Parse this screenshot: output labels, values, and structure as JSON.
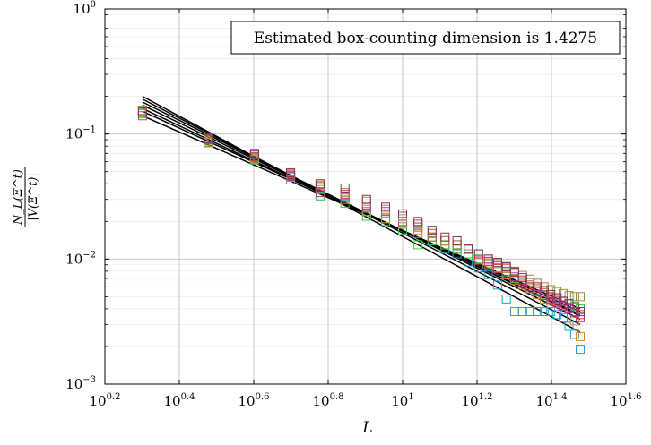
{
  "chart_data": {
    "type": "scatter",
    "title": "",
    "xlabel": "L",
    "ylabel": "N_L(Ξ^t) / |V(Ξ^t)|",
    "ylabel_numerator": "N_L(Ξ^t)",
    "ylabel_denominator": "|V(Ξ^t)|",
    "x_scale": "log",
    "y_scale": "log",
    "xlim": [
      1.5849,
      39.811
    ],
    "ylim": [
      0.001,
      1
    ],
    "x_ticks": [
      {
        "base": "10",
        "exp": "0.2",
        "value": 1.5849
      },
      {
        "base": "10",
        "exp": "0.4",
        "value": 2.5119
      },
      {
        "base": "10",
        "exp": "0.6",
        "value": 3.9811
      },
      {
        "base": "10",
        "exp": "0.8",
        "value": 6.3096
      },
      {
        "base": "10",
        "exp": "1",
        "value": 10
      },
      {
        "base": "10",
        "exp": "1.2",
        "value": 15.849
      },
      {
        "base": "10",
        "exp": "1.4",
        "value": 25.119
      },
      {
        "base": "10",
        "exp": "1.6",
        "value": 39.811
      }
    ],
    "y_ticks": [
      {
        "base": "10",
        "exp": "−3",
        "value": 0.001
      },
      {
        "base": "10",
        "exp": "−2",
        "value": 0.01
      },
      {
        "base": "10",
        "exp": "−1",
        "value": 0.1
      },
      {
        "base": "10",
        "exp": "0",
        "value": 1
      }
    ],
    "grid": true,
    "annotation": "Estimated box-counting dimension is 1.4275",
    "annotation_position": "top-right",
    "x": [
      2,
      3,
      4,
      5,
      6,
      7,
      8,
      9,
      10,
      11,
      12,
      13,
      14,
      15,
      16,
      17,
      18,
      19,
      20,
      21,
      22,
      23,
      24,
      25,
      26,
      27,
      28,
      29,
      30
    ],
    "series": [
      {
        "color": "#1f9fd6",
        "values": [
          0.15,
          0.09,
          0.065,
          0.046,
          0.037,
          0.032,
          0.024,
          0.021,
          0.019,
          0.016,
          0.014,
          0.012,
          0.011,
          0.0095,
          0.0085,
          0.0075,
          0.0062,
          0.0048,
          0.0038,
          0.0038,
          0.0038,
          0.0038,
          0.0038,
          0.0038,
          0.0036,
          0.0034,
          0.0029,
          0.0025,
          0.0019
        ]
      },
      {
        "color": "#e08a1e",
        "values": [
          0.145,
          0.088,
          0.063,
          0.045,
          0.036,
          0.03,
          0.024,
          0.021,
          0.019,
          0.017,
          0.015,
          0.013,
          0.012,
          0.011,
          0.01,
          0.0095,
          0.0085,
          0.0075,
          0.0068,
          0.0062,
          0.0058,
          0.0052,
          0.0048,
          0.0046,
          0.0044,
          0.0042,
          0.004,
          0.0032,
          0.0024
        ]
      },
      {
        "color": "#3cc83c",
        "values": [
          0.148,
          0.086,
          0.062,
          0.043,
          0.032,
          0.028,
          0.022,
          0.02,
          0.017,
          0.013,
          0.014,
          0.013,
          0.012,
          0.011,
          0.01,
          0.0092,
          0.0085,
          0.0078,
          0.007,
          0.0064,
          0.006,
          0.0056,
          0.0052,
          0.005,
          0.0048,
          0.0046,
          0.0044,
          0.0042,
          0.004
        ]
      },
      {
        "color": "#d63a3a",
        "values": [
          0.152,
          0.092,
          0.066,
          0.047,
          0.038,
          0.033,
          0.026,
          0.023,
          0.02,
          0.018,
          0.015,
          0.014,
          0.013,
          0.012,
          0.0098,
          0.009,
          0.0084,
          0.0086,
          0.0078,
          0.0068,
          0.0062,
          0.0058,
          0.0054,
          0.005,
          0.0046,
          0.0043,
          0.0041,
          0.0038,
          0.0036
        ]
      },
      {
        "color": "#b23aa8",
        "values": [
          0.14,
          0.094,
          0.068,
          0.046,
          0.034,
          0.031,
          0.027,
          0.024,
          0.022,
          0.019,
          0.016,
          0.014,
          0.013,
          0.012,
          0.011,
          0.0096,
          0.0088,
          0.008,
          0.0072,
          0.0066,
          0.006,
          0.0055,
          0.0051,
          0.0048,
          0.0045,
          0.0042,
          0.004,
          0.0037,
          0.0034
        ]
      },
      {
        "color": "#a08c3c",
        "values": [
          0.155,
          0.085,
          0.064,
          0.048,
          0.039,
          0.034,
          0.029,
          0.025,
          0.021,
          0.018,
          0.016,
          0.014,
          0.013,
          0.012,
          0.011,
          0.01,
          0.0092,
          0.0084,
          0.008,
          0.0074,
          0.0069,
          0.0064,
          0.006,
          0.0057,
          0.0055,
          0.0053,
          0.0051,
          0.005,
          0.005
        ]
      },
      {
        "color": "#8c3060",
        "values": [
          0.15,
          0.091,
          0.07,
          0.049,
          0.04,
          0.037,
          0.03,
          0.026,
          0.023,
          0.02,
          0.017,
          0.015,
          0.014,
          0.012,
          0.011,
          0.01,
          0.0094,
          0.0087,
          0.0079,
          0.0071,
          0.0065,
          0.006,
          0.0056,
          0.0052,
          0.0049,
          0.0046,
          0.0044,
          0.0041,
          0.0038
        ]
      }
    ],
    "fit_lines": [
      {
        "from": [
          2,
          0.2
        ],
        "to": [
          30,
          0.0026
        ]
      },
      {
        "from": [
          2,
          0.19
        ],
        "to": [
          30,
          0.003
        ]
      },
      {
        "from": [
          2,
          0.18
        ],
        "to": [
          30,
          0.0033
        ]
      },
      {
        "from": [
          2,
          0.17
        ],
        "to": [
          30,
          0.0035
        ]
      },
      {
        "from": [
          2,
          0.16
        ],
        "to": [
          30,
          0.0036
        ]
      },
      {
        "from": [
          2,
          0.152
        ],
        "to": [
          30,
          0.0038
        ]
      },
      {
        "from": [
          2,
          0.14
        ],
        "to": [
          30,
          0.004
        ]
      }
    ]
  }
}
